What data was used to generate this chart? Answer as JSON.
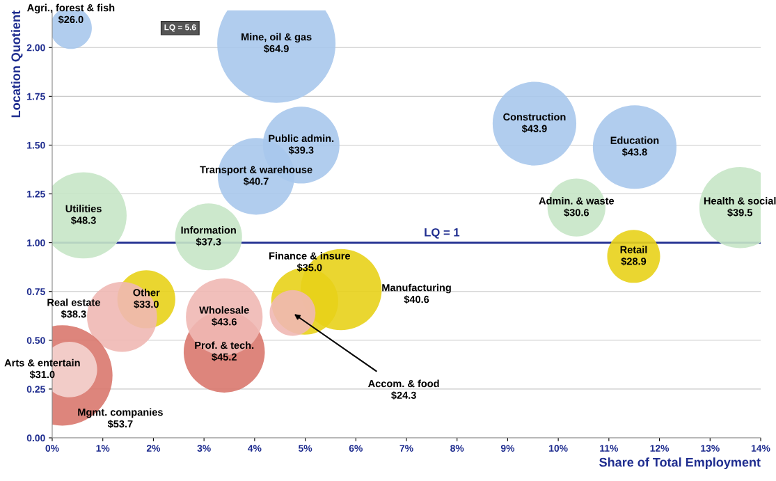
{
  "chart_data": {
    "type": "bubble",
    "xlabel": "Share of Total Employment",
    "ylabel": "Location Quotient",
    "x": [
      0.37,
      4.43,
      4.92,
      4.03,
      9.53,
      11.51,
      10.36,
      13.59,
      0.62,
      3.09,
      11.49,
      5.71,
      4.99,
      4.75,
      1.86,
      1.38,
      3.4,
      3.4,
      0.2,
      0.34
    ],
    "values": [
      2.1,
      2.02,
      1.5,
      1.34,
      1.61,
      1.49,
      1.18,
      1.18,
      1.14,
      1.03,
      0.93,
      0.76,
      0.7,
      0.64,
      0.71,
      0.62,
      0.44,
      0.62,
      0.32,
      0.35
    ],
    "sizes": [
      0.125,
      1,
      0.42,
      0.42,
      0.5,
      0.5,
      0.24,
      0.47,
      0.53,
      0.32,
      0.2,
      0.47,
      0.32,
      0.15,
      0.24,
      0.35,
      0.47,
      0.42,
      0.72,
      0.22
    ],
    "colors": [
      "#a9c8ec",
      "#a9c8ec",
      "#a9c8ec",
      "#a9c8ec",
      "#a9c8ec",
      "#a9c8ec",
      "#c6e6c6",
      "#c6e6c6",
      "#c6e6c6",
      "#c6e6c6",
      "#e8d21a",
      "#e8d21a",
      "#e8d21a",
      "#f0b8b4",
      "#e8d21a",
      "#f0b8b4",
      "#d9786e",
      "#f0b8b4",
      "#d9786e",
      "#f4d4d0"
    ],
    "xlim": [
      0,
      14
    ],
    "xticks": [
      {
        "value": 0,
        "label": "0%"
      },
      {
        "value": 1,
        "label": "1%"
      },
      {
        "value": 2,
        "label": "2%"
      },
      {
        "value": 3,
        "label": "3%"
      },
      {
        "value": 4,
        "label": "4%"
      },
      {
        "value": 5,
        "label": "5%"
      },
      {
        "value": 6,
        "label": "6%"
      },
      {
        "value": 7,
        "label": "7%"
      },
      {
        "value": 8,
        "label": "8%"
      },
      {
        "value": 9,
        "label": "9%"
      },
      {
        "value": 10,
        "label": "10%"
      },
      {
        "value": 11,
        "label": "11%"
      },
      {
        "value": 12,
        "label": "12%"
      },
      {
        "value": 13,
        "label": "13%"
      },
      {
        "value": 14,
        "label": "14%"
      }
    ],
    "ylim": [
      0,
      2.19
    ],
    "yticks": [
      {
        "value": 0,
        "label": "0.00"
      },
      {
        "value": 0.25,
        "label": "0.25"
      },
      {
        "value": 0.5,
        "label": "0.50"
      },
      {
        "value": 0.75,
        "label": "0.75"
      },
      {
        "value": 1,
        "label": "1.00"
      },
      {
        "value": 1.25,
        "label": "1.25"
      },
      {
        "value": 1.5,
        "label": "1.50"
      },
      {
        "value": 1.75,
        "label": "1.75"
      },
      {
        "value": 2,
        "label": "2.00"
      }
    ],
    "grid": "y",
    "ref_lines": [
      {
        "axis": "y",
        "value": 1,
        "label": "LQ = 1",
        "color": "#1f2d8f"
      }
    ],
    "annotations": [
      "Agri., forest & fish\n$26.0",
      {
        "text": "Mine, oil & gas\n$64.9",
        "x": 4.43,
        "y": 2.02
      },
      {
        "text": "Public admin.\n$39.3",
        "x": 4.92,
        "y": 1.5
      },
      {
        "text": "Transport & warehouse\n$40.7",
        "x": 4.03,
        "y": 1.34
      },
      {
        "text": "Construction\n$43.9",
        "x": 9.53,
        "y": 1.61
      },
      {
        "text": "Education\n$43.8",
        "x": 11.51,
        "y": 1.49
      },
      {
        "text": "Admin. & waste\n$30.6",
        "x": 10.36,
        "y": 1.18
      },
      {
        "text": "Health & social\n$39.5",
        "x": 13.59,
        "y": 1.18
      },
      {
        "text": "Utilities\n$48.3",
        "x": 0.62,
        "y": 1.14
      },
      {
        "text": "Information\n$37.3",
        "x": 3.09,
        "y": 1.03
      },
      {
        "text": "Retail\n$28.9",
        "x": 11.49,
        "y": 0.93
      },
      "Manufacturing\n$40.6",
      {
        "text": "Finance & insure\n$35.0",
        "x": 4.99,
        "y": 0.7
      },
      {
        "text": "Accom. & food\n$24.3",
        "x": 4.75,
        "y": 0.64
      },
      {
        "text": "Other\n$33.0",
        "x": 1.86,
        "y": 0.71
      },
      {
        "text": "Real estate\n$38.3",
        "x": 1.38,
        "y": 0.62
      },
      {
        "text": "Prof. & tech.\n$45.2",
        "x": 3.4,
        "y": 0.44
      },
      {
        "text": "Wholesale\n$43.6",
        "x": 3.4,
        "y": 0.62
      },
      "Mgmt. companies\n$53.7",
      {
        "text": "Arts & entertain\n$31.0",
        "x": 0.34,
        "y": 0.35
      },
      "LQ = 5.6"
    ]
  }
}
